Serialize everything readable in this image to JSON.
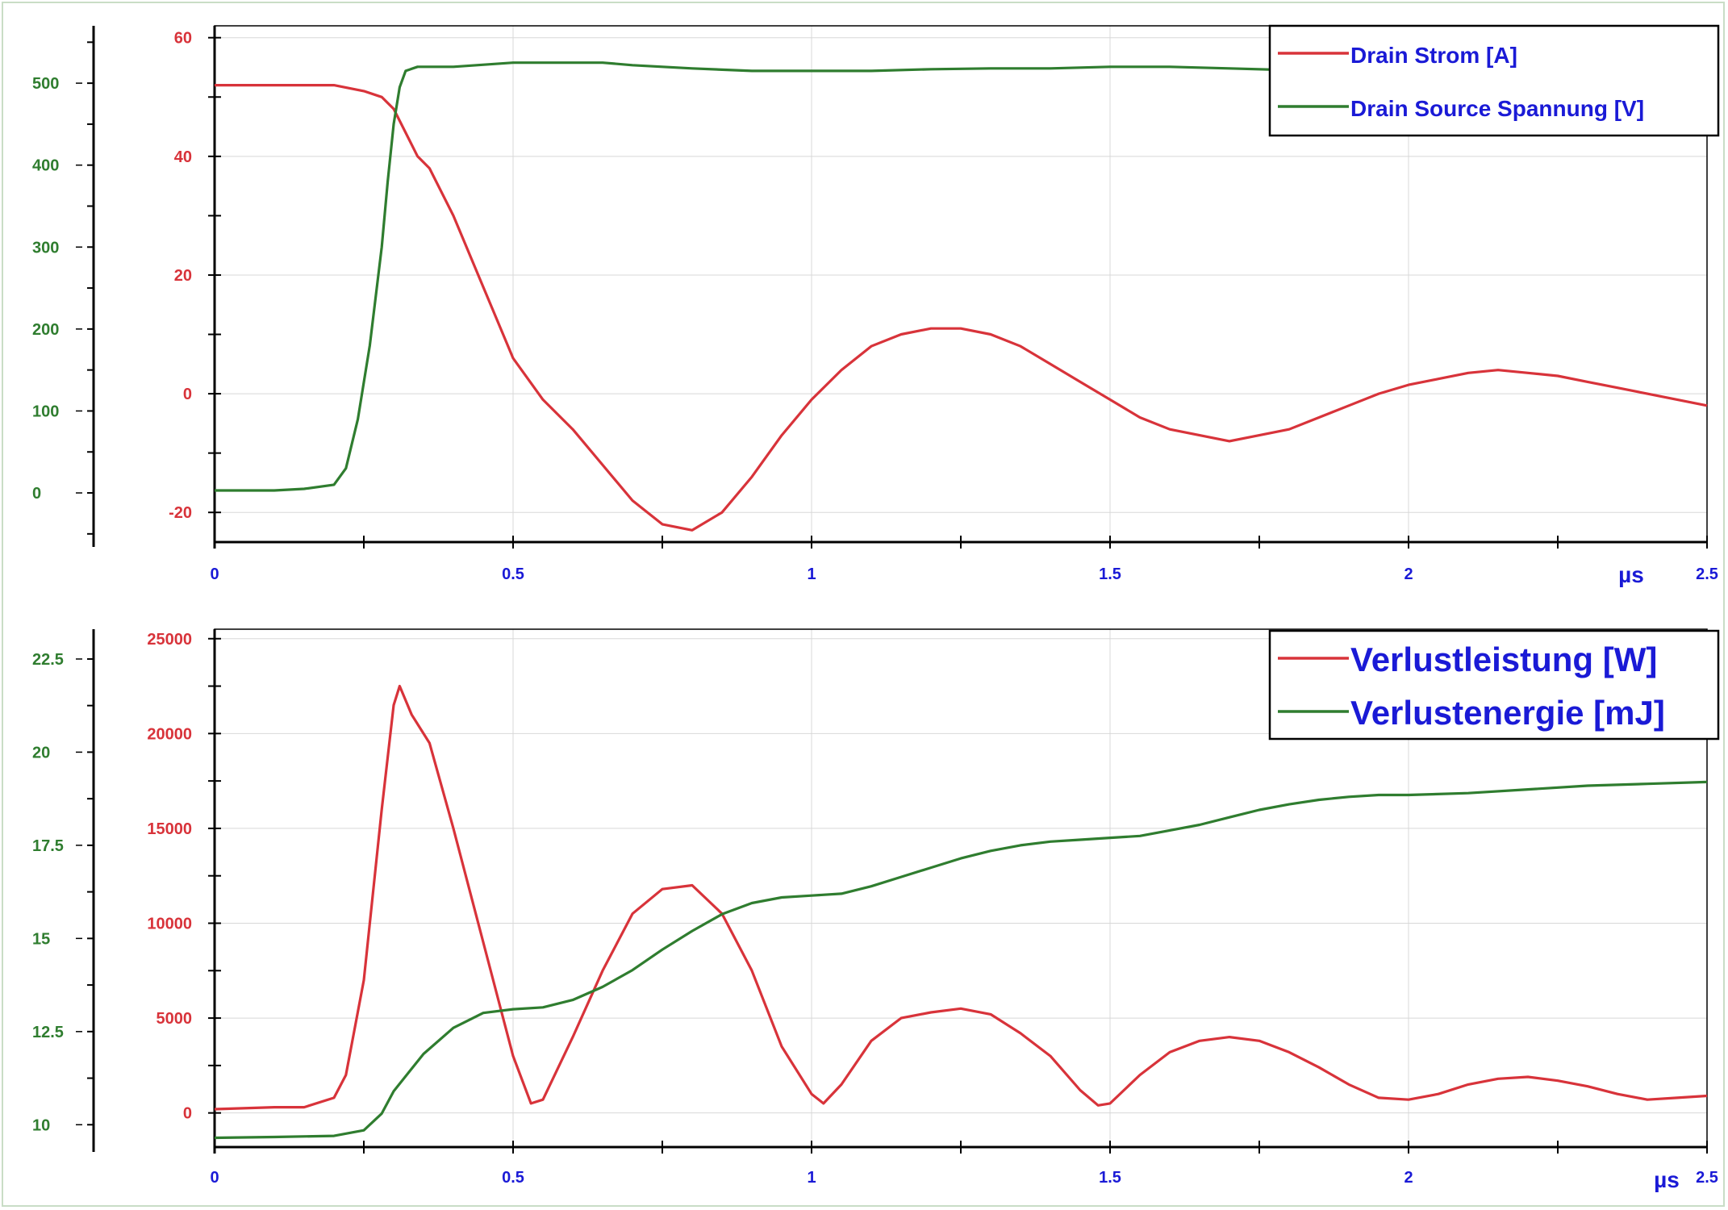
{
  "colors": {
    "red": "#d8333a",
    "green": "#2f7d2f",
    "blue": "#1a1ad6",
    "grid": "#d8d8d8"
  },
  "chart_data": [
    {
      "type": "line",
      "title": "",
      "xlabel": "µs",
      "xlim": [
        0,
        2.5
      ],
      "x_ticks": [
        "0",
        "0.5",
        "1",
        "1.5",
        "2",
        "2.5"
      ],
      "y_left_inner": {
        "ylim": [
          -25,
          62
        ],
        "ticks": [
          "60",
          "40",
          "20",
          "0",
          "-20"
        ]
      },
      "y_left_outer": {
        "ylim": [
          -60,
          570
        ],
        "ticks": [
          "500",
          "400",
          "300",
          "200",
          "100",
          "0"
        ]
      },
      "legend_position": "top-right",
      "series": [
        {
          "name": "Drain Strom [A]",
          "axis": "inner",
          "x": [
            0,
            0.05,
            0.1,
            0.15,
            0.2,
            0.25,
            0.28,
            0.3,
            0.32,
            0.34,
            0.36,
            0.4,
            0.45,
            0.5,
            0.55,
            0.6,
            0.65,
            0.7,
            0.75,
            0.8,
            0.85,
            0.9,
            0.95,
            1.0,
            1.05,
            1.1,
            1.15,
            1.2,
            1.25,
            1.3,
            1.35,
            1.4,
            1.45,
            1.5,
            1.55,
            1.6,
            1.65,
            1.7,
            1.75,
            1.8,
            1.85,
            1.9,
            1.95,
            2.0,
            2.05,
            2.1,
            2.15,
            2.2,
            2.25,
            2.3,
            2.35,
            2.4,
            2.45,
            2.5
          ],
          "values": [
            52,
            52,
            52,
            52,
            52,
            51,
            50,
            48,
            44,
            40,
            38,
            30,
            18,
            6,
            -1,
            -6,
            -12,
            -18,
            -22,
            -23,
            -20,
            -14,
            -7,
            -1,
            4,
            8,
            10,
            11,
            11,
            10,
            8,
            5,
            2,
            -1,
            -4,
            -6,
            -7,
            -8,
            -7,
            -6,
            -4,
            -2,
            0,
            1.5,
            2.5,
            3.5,
            4,
            3.5,
            3,
            2,
            1,
            0,
            -1,
            -2
          ]
        },
        {
          "name": "Drain Source Spannung [V]",
          "axis": "outer",
          "x": [
            0,
            0.05,
            0.1,
            0.15,
            0.2,
            0.22,
            0.24,
            0.26,
            0.28,
            0.29,
            0.3,
            0.31,
            0.32,
            0.34,
            0.4,
            0.5,
            0.6,
            0.65,
            0.7,
            0.8,
            0.9,
            1.0,
            1.1,
            1.2,
            1.3,
            1.4,
            1.5,
            1.6,
            1.7,
            1.8,
            1.9,
            2.0,
            2.2,
            2.4,
            2.5
          ],
          "values": [
            3,
            3,
            3,
            5,
            10,
            30,
            90,
            180,
            300,
            380,
            450,
            495,
            515,
            520,
            520,
            525,
            525,
            525,
            522,
            518,
            515,
            515,
            515,
            517,
            518,
            518,
            520,
            520,
            518,
            516,
            515,
            515,
            515,
            515,
            515
          ]
        }
      ]
    },
    {
      "type": "line",
      "title": "",
      "xlabel": "µs",
      "xlim": [
        0,
        2.5
      ],
      "x_ticks": [
        "0",
        "0.5",
        "1",
        "1.5",
        "2",
        "2.5"
      ],
      "y_left_inner": {
        "ylim": [
          -1800,
          25500
        ],
        "ticks": [
          "25000",
          "20000",
          "15000",
          "10000",
          "5000",
          "0"
        ]
      },
      "y_left_outer": {
        "ylim": [
          9.4,
          23.3
        ],
        "ticks": [
          "22.5",
          "20",
          "17.5",
          "15",
          "12.5",
          "10"
        ]
      },
      "legend_position": "top-right",
      "series": [
        {
          "name": "Verlustleistung [W]",
          "axis": "inner",
          "x": [
            0,
            0.1,
            0.15,
            0.2,
            0.22,
            0.25,
            0.28,
            0.3,
            0.31,
            0.33,
            0.36,
            0.4,
            0.45,
            0.5,
            0.53,
            0.55,
            0.6,
            0.65,
            0.7,
            0.75,
            0.8,
            0.85,
            0.9,
            0.95,
            1.0,
            1.02,
            1.05,
            1.1,
            1.15,
            1.2,
            1.25,
            1.3,
            1.35,
            1.4,
            1.45,
            1.48,
            1.5,
            1.55,
            1.6,
            1.65,
            1.7,
            1.75,
            1.8,
            1.85,
            1.9,
            1.95,
            2.0,
            2.05,
            2.1,
            2.15,
            2.2,
            2.25,
            2.3,
            2.35,
            2.4,
            2.45,
            2.5
          ],
          "values": [
            200,
            300,
            300,
            800,
            2000,
            7000,
            16000,
            21500,
            22500,
            21000,
            19500,
            15000,
            9000,
            3000,
            500,
            700,
            4000,
            7500,
            10500,
            11800,
            12000,
            10500,
            7500,
            3500,
            1000,
            500,
            1500,
            3800,
            5000,
            5300,
            5500,
            5200,
            4200,
            3000,
            1200,
            400,
            500,
            2000,
            3200,
            3800,
            4000,
            3800,
            3200,
            2400,
            1500,
            800,
            700,
            1000,
            1500,
            1800,
            1900,
            1700,
            1400,
            1000,
            700,
            800,
            900
          ]
        },
        {
          "name": "Verlustenergie [mJ]",
          "axis": "outer",
          "x": [
            0,
            0.1,
            0.2,
            0.25,
            0.28,
            0.3,
            0.35,
            0.4,
            0.45,
            0.5,
            0.55,
            0.6,
            0.65,
            0.7,
            0.75,
            0.8,
            0.85,
            0.9,
            0.95,
            1.0,
            1.05,
            1.1,
            1.15,
            1.2,
            1.25,
            1.3,
            1.35,
            1.4,
            1.45,
            1.5,
            1.55,
            1.6,
            1.65,
            1.7,
            1.75,
            1.8,
            1.85,
            1.9,
            1.95,
            2.0,
            2.1,
            2.2,
            2.3,
            2.4,
            2.5
          ],
          "values": [
            9.65,
            9.67,
            9.7,
            9.85,
            10.3,
            10.9,
            11.9,
            12.6,
            13.0,
            13.1,
            13.15,
            13.35,
            13.7,
            14.15,
            14.7,
            15.2,
            15.65,
            15.95,
            16.1,
            16.15,
            16.2,
            16.4,
            16.65,
            16.9,
            17.15,
            17.35,
            17.5,
            17.6,
            17.65,
            17.7,
            17.75,
            17.9,
            18.05,
            18.25,
            18.45,
            18.6,
            18.72,
            18.8,
            18.85,
            18.85,
            18.9,
            19.0,
            19.1,
            19.15,
            19.2
          ]
        }
      ]
    }
  ]
}
